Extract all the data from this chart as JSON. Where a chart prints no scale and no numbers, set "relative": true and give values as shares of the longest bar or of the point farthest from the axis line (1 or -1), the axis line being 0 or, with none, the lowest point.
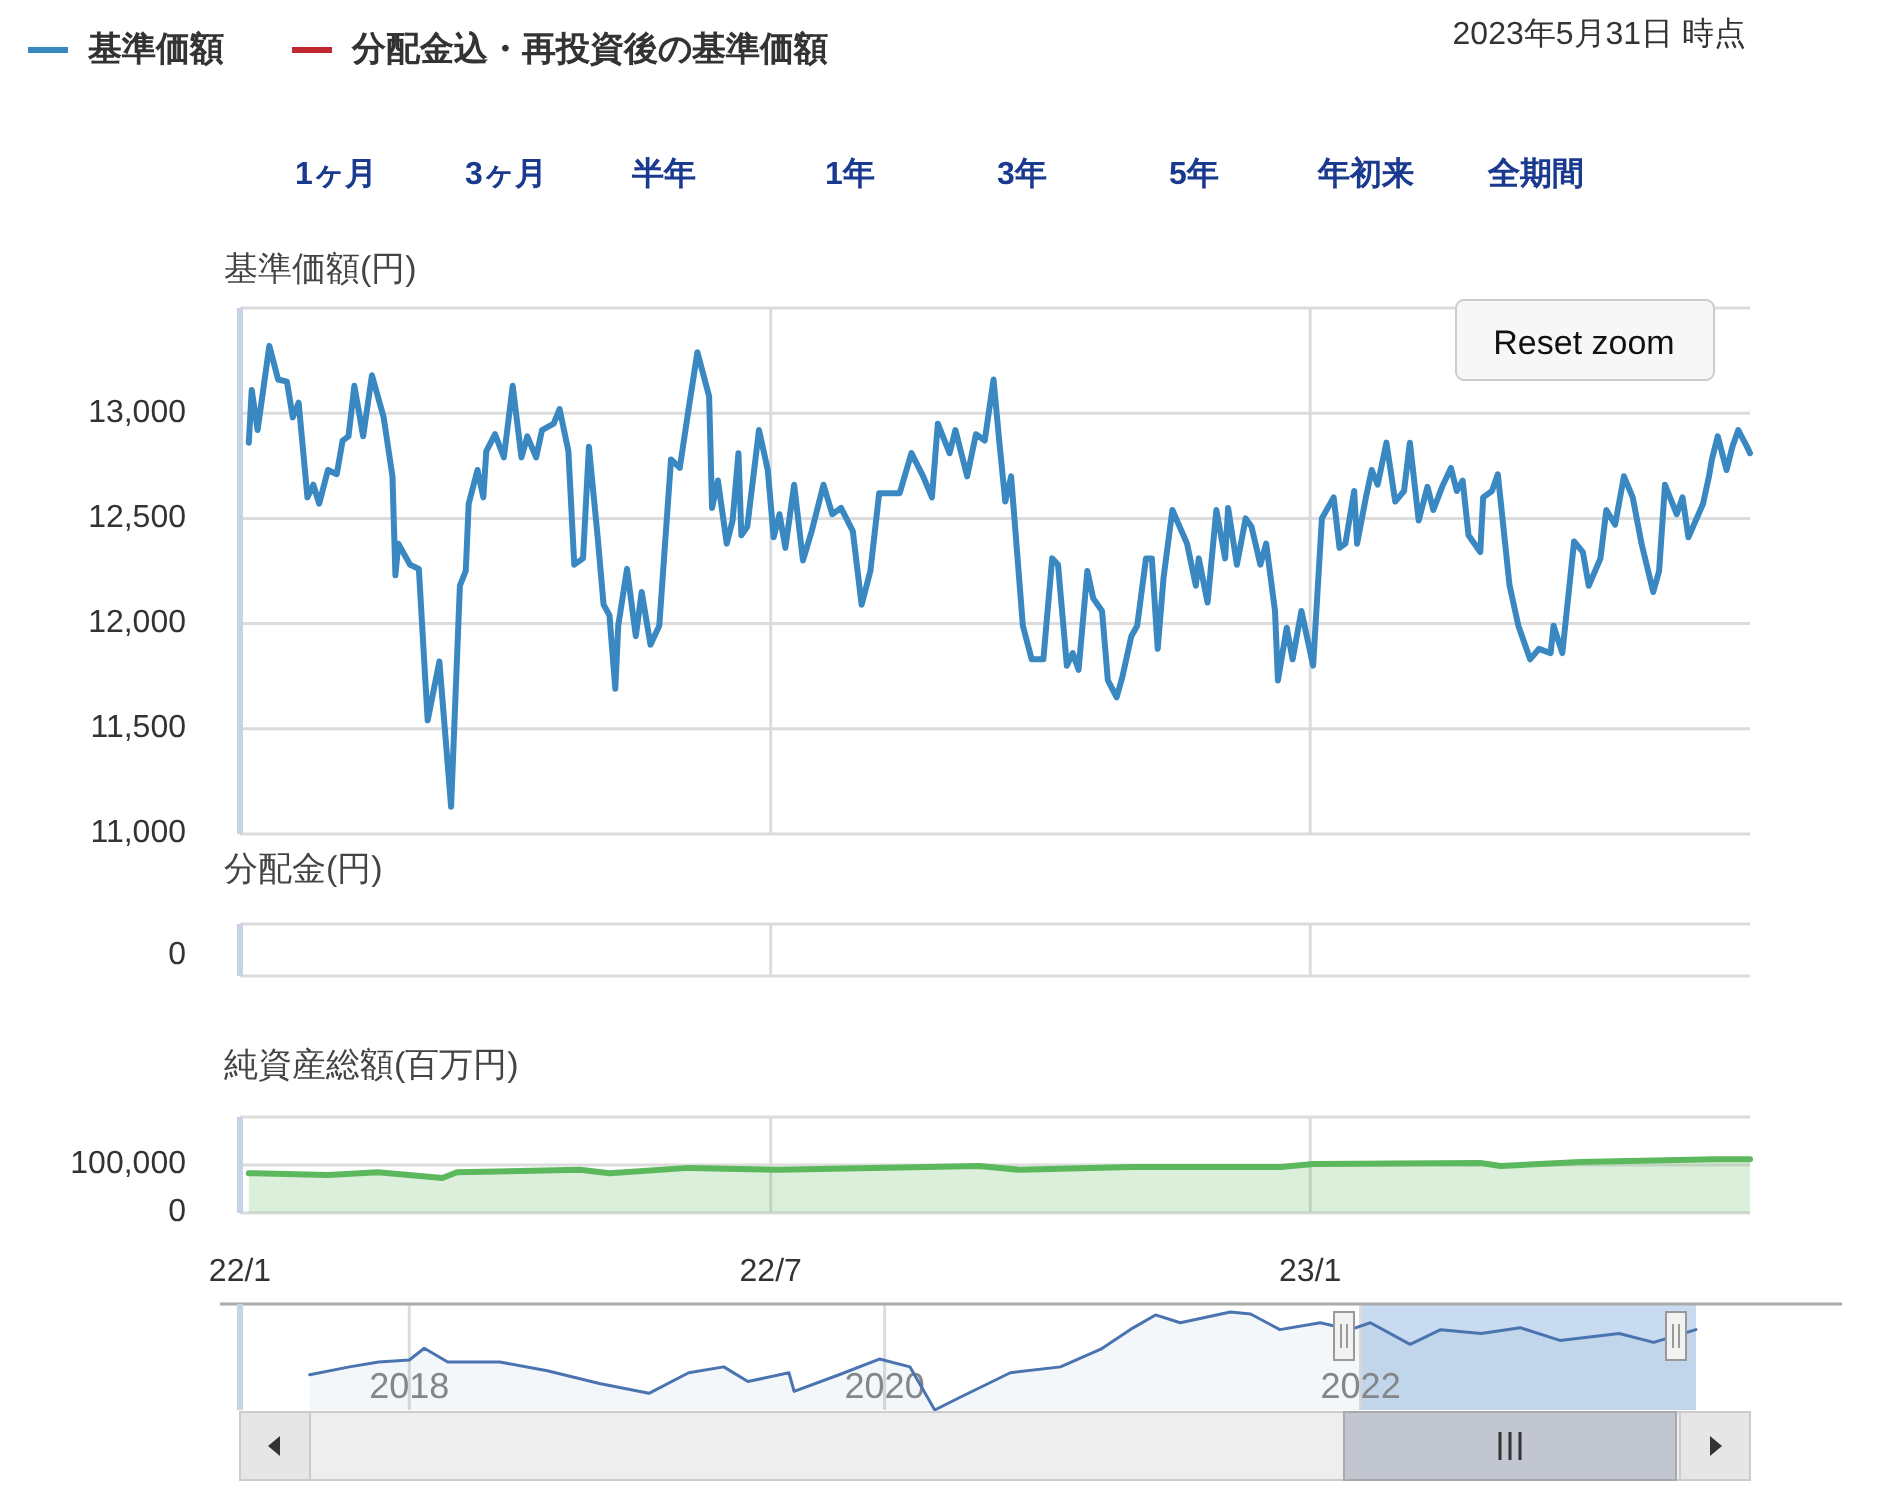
{
  "chart_data": [
    {
      "type": "line",
      "ylabel": "基準価額(円)",
      "legend": "top left",
      "grid": true,
      "tick_labels": "y",
      "annotations": [
        "2023年5月31日 時点",
        "1ヶ月",
        "3ヶ月",
        "半年",
        "1年",
        "3年",
        "5年",
        "年初来",
        "全期間",
        "Reset zoom"
      ],
      "xlim": [
        "2022-01-01",
        "2023-05-31"
      ],
      "xticks": [
        {
          "value": "2022-01-01",
          "label": null
        },
        {
          "value": "2022-07-01",
          "label": null
        },
        {
          "value": "2023-01-01",
          "label": null
        }
      ],
      "ylim": [
        11000,
        13500
      ],
      "yticks": [
        {
          "value": 11000,
          "label": "11,000"
        },
        {
          "value": 11500,
          "label": "11,500"
        },
        {
          "value": 12000,
          "label": "12,000"
        },
        {
          "value": 12500,
          "label": "12,500"
        },
        {
          "value": 13000,
          "label": "13,000"
        },
        {
          "value": 13500,
          "label": null
        }
      ],
      "series": [
        {
          "name": "基準価額",
          "color": "#3a88c2",
          "x": [
            "2022-01-04",
            "2022-01-05",
            "2022-01-07",
            "2022-01-11",
            "2022-01-14",
            "2022-01-17",
            "2022-01-19",
            "2022-01-21",
            "2022-01-24",
            "2022-01-26",
            "2022-01-28",
            "2022-01-31",
            "2022-02-03",
            "2022-02-05",
            "2022-02-07",
            "2022-02-09",
            "2022-02-12",
            "2022-02-15",
            "2022-02-19",
            "2022-02-22",
            "2022-02-23",
            "2022-02-24",
            "2022-02-28",
            "2022-03-03",
            "2022-03-06",
            "2022-03-10",
            "2022-03-14",
            "2022-03-17",
            "2022-03-19",
            "2022-03-20",
            "2022-03-23",
            "2022-03-25",
            "2022-03-26",
            "2022-03-29",
            "2022-04-01",
            "2022-04-04",
            "2022-04-07",
            "2022-04-09",
            "2022-04-12",
            "2022-04-14",
            "2022-04-18",
            "2022-04-20",
            "2022-04-23",
            "2022-04-25",
            "2022-04-28",
            "2022-04-30",
            "2022-05-03",
            "2022-05-05",
            "2022-05-07",
            "2022-05-09",
            "2022-05-10",
            "2022-05-13",
            "2022-05-16",
            "2022-05-18",
            "2022-05-21",
            "2022-05-24",
            "2022-05-28",
            "2022-05-31",
            "2022-06-03",
            "2022-06-06",
            "2022-06-10",
            "2022-06-11",
            "2022-06-13",
            "2022-06-16",
            "2022-06-18",
            "2022-06-20",
            "2022-06-21",
            "2022-06-23",
            "2022-06-27",
            "2022-06-30",
            "2022-07-02",
            "2022-07-04",
            "2022-07-06",
            "2022-07-09",
            "2022-07-12",
            "2022-07-15",
            "2022-07-19",
            "2022-07-22",
            "2022-07-25",
            "2022-07-29",
            "2022-08-01",
            "2022-08-04",
            "2022-08-07",
            "2022-08-14",
            "2022-08-18",
            "2022-08-22",
            "2022-08-25",
            "2022-08-27",
            "2022-08-31",
            "2022-09-02",
            "2022-09-06",
            "2022-09-09",
            "2022-09-12",
            "2022-09-15",
            "2022-09-17",
            "2022-09-19",
            "2022-09-21",
            "2022-09-25",
            "2022-09-28",
            "2022-10-02",
            "2022-10-05",
            "2022-10-07",
            "2022-10-10",
            "2022-10-12",
            "2022-10-14",
            "2022-10-17",
            "2022-10-19",
            "2022-10-22",
            "2022-10-24",
            "2022-10-27",
            "2022-10-29",
            "2022-11-01",
            "2022-11-03",
            "2022-11-06",
            "2022-11-08",
            "2022-11-10",
            "2022-11-12",
            "2022-11-15",
            "2022-11-20",
            "2022-11-23",
            "2022-11-24",
            "2022-11-27",
            "2022-11-30",
            "2022-12-03",
            "2022-12-04",
            "2022-12-07",
            "2022-12-10",
            "2022-12-12",
            "2022-12-15",
            "2022-12-17",
            "2022-12-20",
            "2022-12-21",
            "2022-12-24",
            "2022-12-26",
            "2022-12-29",
            "2023-01-02",
            "2023-01-05",
            "2023-01-09",
            "2023-01-11",
            "2023-01-13",
            "2023-01-16",
            "2023-01-17",
            "2023-01-20",
            "2023-01-22",
            "2023-01-24",
            "2023-01-27",
            "2023-01-30",
            "2023-02-02",
            "2023-02-04",
            "2023-02-07",
            "2023-02-10",
            "2023-02-12",
            "2023-02-15",
            "2023-02-18",
            "2023-02-20",
            "2023-02-22",
            "2023-02-24",
            "2023-02-28",
            "2023-03-01",
            "2023-03-04",
            "2023-03-06",
            "2023-03-10",
            "2023-03-13",
            "2023-03-17",
            "2023-03-20",
            "2023-03-24",
            "2023-03-25",
            "2023-03-28",
            "2023-04-01",
            "2023-04-04",
            "2023-04-06",
            "2023-04-10",
            "2023-04-12",
            "2023-04-15",
            "2023-04-18",
            "2023-04-21",
            "2023-04-24",
            "2023-04-28",
            "2023-04-30",
            "2023-05-02",
            "2023-05-06",
            "2023-05-08",
            "2023-05-10",
            "2023-05-15",
            "2023-05-17",
            "2023-05-18",
            "2023-05-20",
            "2023-05-23",
            "2023-05-25",
            "2023-05-27",
            "2023-05-30",
            "2023-05-31"
          ],
          "values": [
            12860,
            13110,
            12920,
            13320,
            13160,
            13150,
            12980,
            13050,
            12600,
            12660,
            12570,
            12730,
            12710,
            12870,
            12890,
            13130,
            12890,
            13180,
            12980,
            12700,
            12230,
            12380,
            12280,
            12260,
            11540,
            11820,
            11130,
            12180,
            12250,
            12570,
            12730,
            12600,
            12820,
            12900,
            12790,
            13130,
            12790,
            12890,
            12790,
            12920,
            12950,
            13020,
            12820,
            12280,
            12310,
            12840,
            12410,
            12090,
            12040,
            11690,
            11990,
            12260,
            11940,
            12150,
            11900,
            11990,
            12780,
            12740,
            13020,
            13290,
            13080,
            12550,
            12680,
            12380,
            12490,
            12810,
            12420,
            12460,
            12920,
            12730,
            12410,
            12520,
            12360,
            12660,
            12300,
            12440,
            12660,
            12520,
            12550,
            12440,
            12090,
            12250,
            12620,
            12620,
            12810,
            12700,
            12600,
            12950,
            12810,
            12920,
            12700,
            12900,
            12870,
            13160,
            12860,
            12580,
            12700,
            11990,
            11830,
            11830,
            12310,
            12280,
            11800,
            11860,
            11780,
            12250,
            12120,
            12060,
            11730,
            11650,
            11750,
            11940,
            11990,
            12310,
            12310,
            11880,
            12220,
            12540,
            12380,
            12180,
            12310,
            12100,
            12540,
            12310,
            12550,
            12280,
            12500,
            12460,
            12280,
            12380,
            12060,
            11730,
            11980,
            11830,
            12060,
            11800,
            12500,
            12600,
            12360,
            12380,
            12630,
            12380,
            12600,
            12730,
            12660,
            12860,
            12580,
            12630,
            12860,
            12490,
            12650,
            12540,
            12650,
            12740,
            12630,
            12680,
            12420,
            12340,
            12600,
            12630,
            12710,
            12180,
            11990,
            11830,
            11880,
            11860,
            11990,
            11860,
            12390,
            12340,
            12180,
            12310,
            12540,
            12470,
            12700,
            12600,
            12380,
            12150,
            12250,
            12660,
            12520,
            12600,
            12410,
            12570,
            12700,
            12780,
            12890,
            12730,
            12840,
            12920,
            12840,
            12810
          ]
        },
        {
          "name": "分配金込・再投資後の基準価額",
          "color": "#c0282d",
          "values": [
            null
          ]
        }
      ]
    },
    {
      "type": "other",
      "ylabel": "分配金(円)",
      "annotations": [
        "0"
      ]
    },
    {
      "type": "area",
      "ylabel": "純資産総額(百万円)",
      "grid": true,
      "xlim": [
        "2022-01-01",
        "2023-05-31"
      ],
      "xticks": [
        {
          "value": "2022-01-01",
          "label": "22/1"
        },
        {
          "value": "2022-07-01",
          "label": "22/7"
        },
        {
          "value": "2023-01-01",
          "label": "23/1"
        }
      ],
      "ylim": [
        0,
        200000
      ],
      "yticks": [
        0,
        {
          "value": 100000,
          "label": "100,000"
        },
        {
          "value": 200000,
          "label": null
        }
      ],
      "series": [
        {
          "color": "#5cb85c",
          "x": [
            "2022-01-04",
            "2022-01-31",
            "2022-02-17",
            "2022-03-11",
            "2022-03-16",
            "2022-04-27",
            "2022-05-07",
            "2022-06-03",
            "2022-07-04",
            "2022-09-10",
            "2022-09-24",
            "2022-11-01",
            "2022-12-22",
            "2023-01-02",
            "2023-02-28",
            "2023-03-07",
            "2023-04-03",
            "2023-05-19",
            "2023-05-31"
          ],
          "values": [
            83000,
            79000,
            85000,
            73000,
            85000,
            90000,
            83000,
            94000,
            90000,
            98000,
            90000,
            96000,
            96000,
            102000,
            104000,
            98000,
            106000,
            112000,
            112000
          ]
        }
      ]
    },
    {
      "type": "area",
      "relative": true,
      "grid": "x",
      "xlim": [
        "2017-04-16",
        "2023-08-22"
      ],
      "xticks": [
        "2018",
        "2020",
        "2022"
      ],
      "bands": [
        {
          "axis": "x",
          "from": "2022-01-01",
          "to": "2023-05-31",
          "color": "#c9dbf0"
        }
      ],
      "series": [
        {
          "color": "#4a74b0",
          "x": [
            "2017-08-01",
            "2017-10-01",
            "2017-11-15",
            "2018-01-01",
            "2018-01-24",
            "2018-03-01",
            "2018-05-20",
            "2018-08-01",
            "2018-10-20",
            "2019-01-04",
            "2019-03-06",
            "2019-04-29",
            "2019-06-05",
            "2019-08-07",
            "2019-08-15",
            "2019-10-23",
            "2019-12-24",
            "2020-02-09",
            "2020-03-18",
            "2020-04-26",
            "2020-07-12",
            "2020-09-27",
            "2020-11-28",
            "2021-01-12",
            "2021-02-20",
            "2021-03-30",
            "2021-06-15",
            "2021-07-16",
            "2021-08-30",
            "2021-10-31",
            "2021-12-16",
            "2022-01-16",
            "2022-03-18",
            "2022-05-04",
            "2022-07-05",
            "2022-09-03",
            "2022-11-03",
            "2023-02-02",
            "2023-03-27",
            "2023-05-31"
          ],
          "values": [
            0.36,
            0.44,
            0.49,
            0.51,
            0.63,
            0.49,
            0.49,
            0.4,
            0.27,
            0.17,
            0.38,
            0.44,
            0.29,
            0.38,
            0.19,
            0.36,
            0.52,
            0.44,
            0,
            0.13,
            0.38,
            0.44,
            0.62,
            0.82,
            0.97,
            0.89,
            1,
            0.98,
            0.82,
            0.89,
            0.82,
            0.89,
            0.67,
            0.82,
            0.78,
            0.84,
            0.71,
            0.78,
            0.69,
            0.82
          ]
        }
      ]
    }
  ]
}
